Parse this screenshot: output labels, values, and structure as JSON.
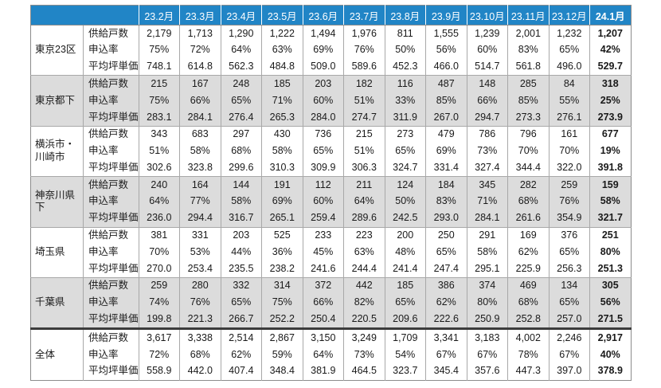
{
  "colors": {
    "header_bg": "#2185c6",
    "header_text": "#ffffff",
    "stripe_bg": "#dcdcdc",
    "grid_border": "#a8a8a8",
    "outer_border": "#8c8c8c",
    "total_separator": "#3c3c3c",
    "text": "#1a1a1a"
  },
  "chart_data": {
    "type": "table",
    "columns": [
      "23.2月",
      "23.3月",
      "23.4月",
      "23.5月",
      "23.6月",
      "23.7月",
      "23.8月",
      "23.9月",
      "23.10月",
      "23.11月",
      "23.12月",
      "24.1月"
    ],
    "row_metrics": [
      "供給戸数",
      "申込率",
      "平均坪単価"
    ],
    "groups": [
      {
        "region": "東京23区",
        "supply": [
          "2,179",
          "1,713",
          "1,290",
          "1,222",
          "1,494",
          "1,976",
          "811",
          "1,555",
          "1,239",
          "2,001",
          "1,232",
          "1,207"
        ],
        "rate": [
          "75%",
          "72%",
          "64%",
          "63%",
          "69%",
          "76%",
          "50%",
          "56%",
          "60%",
          "83%",
          "65%",
          "42%"
        ],
        "price": [
          "748.1",
          "614.8",
          "562.3",
          "484.8",
          "509.0",
          "589.6",
          "452.3",
          "466.0",
          "514.7",
          "561.8",
          "496.0",
          "529.7"
        ]
      },
      {
        "region": "東京都下",
        "supply": [
          "215",
          "167",
          "248",
          "185",
          "203",
          "182",
          "116",
          "487",
          "148",
          "285",
          "84",
          "318"
        ],
        "rate": [
          "75%",
          "66%",
          "65%",
          "71%",
          "60%",
          "51%",
          "33%",
          "85%",
          "66%",
          "85%",
          "55%",
          "25%"
        ],
        "price": [
          "283.1",
          "284.1",
          "276.4",
          "265.3",
          "284.0",
          "274.7",
          "311.9",
          "267.0",
          "294.7",
          "273.3",
          "276.1",
          "273.9"
        ]
      },
      {
        "region": "横浜市・川崎市",
        "supply": [
          "343",
          "683",
          "297",
          "430",
          "736",
          "215",
          "273",
          "479",
          "786",
          "796",
          "161",
          "677"
        ],
        "rate": [
          "51%",
          "58%",
          "68%",
          "58%",
          "65%",
          "51%",
          "65%",
          "69%",
          "73%",
          "70%",
          "70%",
          "19%"
        ],
        "price": [
          "302.6",
          "323.8",
          "299.6",
          "310.3",
          "309.9",
          "306.3",
          "324.7",
          "331.4",
          "327.4",
          "344.4",
          "322.0",
          "391.8"
        ]
      },
      {
        "region": "神奈川県下",
        "supply": [
          "240",
          "164",
          "144",
          "191",
          "112",
          "211",
          "124",
          "184",
          "345",
          "282",
          "259",
          "159"
        ],
        "rate": [
          "64%",
          "77%",
          "58%",
          "69%",
          "60%",
          "64%",
          "50%",
          "83%",
          "71%",
          "68%",
          "76%",
          "58%"
        ],
        "price": [
          "236.0",
          "294.4",
          "316.7",
          "265.1",
          "259.4",
          "289.6",
          "242.5",
          "293.0",
          "284.1",
          "261.6",
          "354.9",
          "321.7"
        ]
      },
      {
        "region": "埼玉県",
        "supply": [
          "381",
          "331",
          "203",
          "525",
          "233",
          "223",
          "200",
          "250",
          "291",
          "169",
          "376",
          "251"
        ],
        "rate": [
          "70%",
          "53%",
          "44%",
          "36%",
          "45%",
          "63%",
          "48%",
          "65%",
          "58%",
          "62%",
          "65%",
          "80%"
        ],
        "price": [
          "270.0",
          "253.4",
          "235.5",
          "238.2",
          "241.6",
          "244.4",
          "241.4",
          "247.4",
          "295.1",
          "225.9",
          "256.3",
          "251.3"
        ]
      },
      {
        "region": "千葉県",
        "supply": [
          "259",
          "280",
          "332",
          "314",
          "372",
          "442",
          "185",
          "386",
          "374",
          "469",
          "134",
          "305"
        ],
        "rate": [
          "74%",
          "76%",
          "65%",
          "75%",
          "66%",
          "82%",
          "65%",
          "62%",
          "80%",
          "68%",
          "65%",
          "56%"
        ],
        "price": [
          "199.8",
          "221.3",
          "266.7",
          "252.2",
          "250.4",
          "220.5",
          "209.6",
          "222.6",
          "250.9",
          "252.8",
          "257.0",
          "271.5"
        ]
      },
      {
        "region": "全体",
        "supply": [
          "3,617",
          "3,338",
          "2,514",
          "2,867",
          "3,150",
          "3,249",
          "1,709",
          "3,341",
          "3,183",
          "4,002",
          "2,246",
          "2,917"
        ],
        "rate": [
          "72%",
          "68%",
          "62%",
          "59%",
          "64%",
          "73%",
          "54%",
          "67%",
          "67%",
          "78%",
          "67%",
          "40%"
        ],
        "price": [
          "558.9",
          "442.0",
          "407.4",
          "348.4",
          "381.9",
          "464.5",
          "323.7",
          "345.4",
          "357.6",
          "447.3",
          "397.0",
          "378.9"
        ]
      }
    ]
  }
}
